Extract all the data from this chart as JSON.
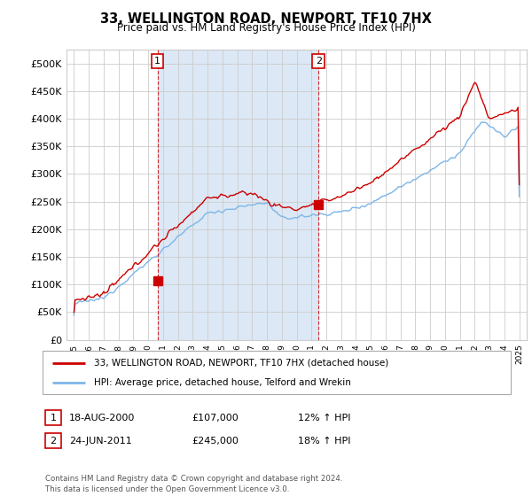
{
  "title": "33, WELLINGTON ROAD, NEWPORT, TF10 7HX",
  "subtitle": "Price paid vs. HM Land Registry's House Price Index (HPI)",
  "ytick_values": [
    0,
    50000,
    100000,
    150000,
    200000,
    250000,
    300000,
    350000,
    400000,
    450000,
    500000
  ],
  "ylim": [
    0,
    525000
  ],
  "xlim_start": 1994.5,
  "xlim_end": 2025.5,
  "hpi_color": "#7EB6E8",
  "price_color": "#CC0000",
  "shade_color": "#DCE8F5",
  "background_color": "#ffffff",
  "grid_color": "#cccccc",
  "ann1_x": 2000.63,
  "ann1_y": 107000,
  "ann2_x": 2011.48,
  "ann2_y": 245000,
  "legend_line1": "33, WELLINGTON ROAD, NEWPORT, TF10 7HX (detached house)",
  "legend_line2": "HPI: Average price, detached house, Telford and Wrekin",
  "footer": "Contains HM Land Registry data © Crown copyright and database right 2024.\nThis data is licensed under the Open Government Licence v3.0.",
  "table_rows": [
    {
      "num": "1",
      "date": "18-AUG-2000",
      "price": "£107,000",
      "pct": "12% ↑ HPI"
    },
    {
      "num": "2",
      "date": "24-JUN-2011",
      "price": "£245,000",
      "pct": "18% ↑ HPI"
    }
  ]
}
